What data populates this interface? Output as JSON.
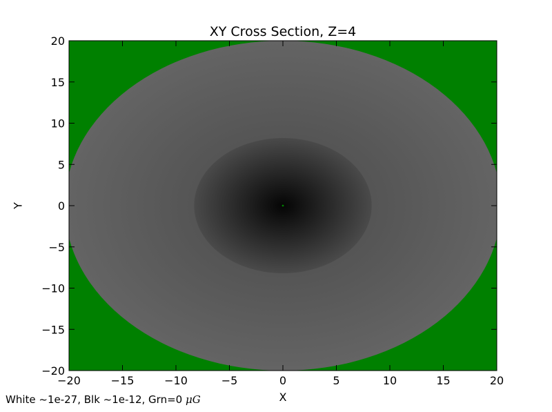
{
  "chart_data": {
    "type": "heatmap",
    "title": "XY Cross Section, Z=4",
    "xlabel": "X",
    "ylabel": "Y",
    "xlim": [
      -20,
      20
    ],
    "ylim": [
      -20,
      20
    ],
    "xticks": [
      -20,
      -15,
      -10,
      -5,
      0,
      5,
      10,
      15,
      20
    ],
    "yticks": [
      -20,
      -15,
      -10,
      -5,
      0,
      5,
      10,
      15,
      20
    ],
    "xtick_labels": [
      "−20",
      "−15",
      "−10",
      "−5",
      "0",
      "5",
      "10",
      "15",
      "20"
    ],
    "ytick_labels": [
      "−20",
      "−15",
      "−10",
      "−5",
      "0",
      "5",
      "10",
      "15",
      "20"
    ],
    "grid": false,
    "colors": {
      "zero_field": "#008000",
      "low_end": "#ffffff",
      "high_end": "#000000",
      "outer_region_edge": "#646464",
      "inner_region_edge": "#4a4a4a",
      "center": "#050505"
    },
    "regions": [
      {
        "name": "outer-ellipse",
        "center": [
          0,
          0
        ],
        "semi_axes": [
          20.4,
          20
        ]
      },
      {
        "name": "inner-ellipse",
        "center": [
          0,
          0
        ],
        "semi_axes": [
          8.3,
          8.2
        ]
      },
      {
        "name": "center-zero-spot",
        "center": [
          0,
          0
        ]
      }
    ]
  },
  "footnote": {
    "text": "White ~1e-27, Blk ~1e-12, Grn=0 ",
    "unit": "μG"
  }
}
